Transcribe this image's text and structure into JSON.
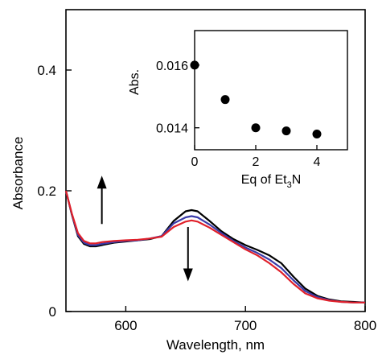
{
  "chart_data": [
    {
      "type": "line",
      "xlabel": "Wavelength, nm",
      "ylabel": "Absorbance",
      "xlim": [
        550,
        800
      ],
      "ylim": [
        0,
        0.5
      ],
      "x_ticks": [
        600,
        700,
        800
      ],
      "x_tick_labels": [
        "600",
        "700",
        "800"
      ],
      "y_ticks": [
        0,
        0.2,
        0.4
      ],
      "y_tick_labels": [
        "0",
        "0.2",
        "0.4"
      ],
      "grid": false,
      "series": [
        {
          "color": "#000000",
          "x": [
            550,
            555,
            560,
            565,
            570,
            575,
            580,
            590,
            600,
            610,
            620,
            630,
            640,
            650,
            655,
            660,
            670,
            680,
            690,
            700,
            710,
            720,
            730,
            740,
            750,
            760,
            770,
            780,
            790,
            800
          ],
          "y": [
            0.2,
            0.16,
            0.125,
            0.112,
            0.108,
            0.108,
            0.11,
            0.114,
            0.116,
            0.118,
            0.12,
            0.125,
            0.15,
            0.166,
            0.168,
            0.166,
            0.15,
            0.133,
            0.12,
            0.11,
            0.102,
            0.093,
            0.08,
            0.058,
            0.038,
            0.026,
            0.02,
            0.017,
            0.016,
            0.015
          ]
        },
        {
          "color": "#3a3aa8",
          "x": [
            550,
            555,
            560,
            565,
            570,
            575,
            580,
            590,
            600,
            610,
            620,
            630,
            640,
            650,
            655,
            660,
            670,
            680,
            690,
            700,
            710,
            720,
            730,
            740,
            750,
            760,
            770,
            780,
            790,
            800
          ],
          "y": [
            0.2,
            0.161,
            0.127,
            0.114,
            0.11,
            0.11,
            0.112,
            0.115,
            0.117,
            0.118,
            0.121,
            0.125,
            0.146,
            0.156,
            0.158,
            0.156,
            0.144,
            0.13,
            0.117,
            0.106,
            0.097,
            0.086,
            0.072,
            0.052,
            0.034,
            0.024,
            0.019,
            0.016,
            0.015,
            0.015
          ]
        },
        {
          "color": "#e0202a",
          "x": [
            550,
            555,
            560,
            565,
            570,
            575,
            580,
            590,
            600,
            610,
            620,
            630,
            640,
            650,
            655,
            660,
            670,
            680,
            690,
            700,
            710,
            720,
            730,
            740,
            750,
            760,
            770,
            780,
            790,
            800
          ],
          "y": [
            0.2,
            0.162,
            0.13,
            0.117,
            0.113,
            0.113,
            0.115,
            0.117,
            0.118,
            0.119,
            0.121,
            0.124,
            0.14,
            0.149,
            0.151,
            0.149,
            0.139,
            0.127,
            0.115,
            0.103,
            0.093,
            0.08,
            0.065,
            0.046,
            0.03,
            0.022,
            0.018,
            0.016,
            0.015,
            0.015
          ]
        }
      ],
      "annotations": [
        {
          "type": "arrow",
          "direction": "up",
          "x": 580,
          "y_from": 0.145,
          "y_to": 0.225
        },
        {
          "type": "arrow",
          "direction": "down",
          "x": 652,
          "y_from": 0.14,
          "y_to": 0.05
        }
      ]
    },
    {
      "type": "scatter",
      "xlabel": "Eq of Et3N",
      "xlabel_parts": [
        "Eq of Et",
        "3",
        "N"
      ],
      "ylabel": "Abs.",
      "xlim": [
        0,
        5
      ],
      "ylim": [
        0.0133,
        0.0171
      ],
      "x_ticks": [
        0,
        2,
        4
      ],
      "x_tick_labels": [
        "0",
        "2",
        "4"
      ],
      "y_ticks": [
        0.014,
        0.016
      ],
      "y_tick_labels": [
        "0.014",
        "0.016"
      ],
      "grid": false,
      "x": [
        0,
        1,
        2,
        3,
        4
      ],
      "y": [
        0.016,
        0.0149,
        0.014,
        0.0139,
        0.0138
      ]
    }
  ]
}
